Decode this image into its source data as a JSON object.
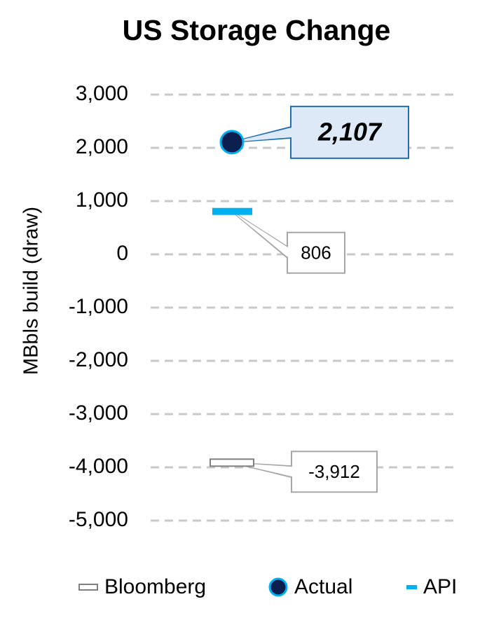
{
  "chart_data": {
    "type": "marker",
    "title": "US Storage Change",
    "y_label": "MBbls build (draw)",
    "ylim": [
      -5000,
      3000
    ],
    "yticks": [
      {
        "value": -5000,
        "label": "-5,000"
      },
      {
        "value": -4000,
        "label": "-4,000"
      },
      {
        "value": -3000,
        "label": "-3,000"
      },
      {
        "value": -2000,
        "label": "-2,000"
      },
      {
        "value": -1000,
        "label": "-1,000"
      },
      0,
      {
        "value": 1000,
        "label": "1,000"
      },
      {
        "value": 2000,
        "label": "2,000"
      },
      {
        "value": 3000,
        "label": "3,000"
      }
    ],
    "grid": true,
    "series": [
      {
        "name": "Bloomberg",
        "marker": "box",
        "color": "#ffffff",
        "edge": "#808080",
        "values": [
          -3912
        ],
        "value_labels": [
          "-3,912"
        ]
      },
      {
        "name": "Actual",
        "marker": "circle",
        "color": "#0b1f4e",
        "edge": "#00b0f0",
        "values": [
          2107
        ],
        "value_labels": [
          "2,107"
        ]
      },
      {
        "name": "API",
        "marker": "dash",
        "color": "#00b0f0",
        "values": [
          806
        ]
      }
    ]
  }
}
